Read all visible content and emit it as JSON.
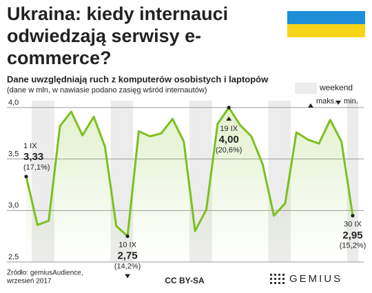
{
  "chart_data": {
    "type": "line",
    "title": "Ukraina: kiedy internauci odwiedzają serwisy e-commerce?",
    "subtitle": "Dane uwzględniają ruch z komputerów osobistych i laptopów",
    "note": "(dane w mln, w nawiasie podano zasięg wśród internautów)",
    "legend": {
      "weekend": "weekend",
      "max": "maks.",
      "min": "min."
    },
    "categories": [
      "1 IX",
      null,
      null,
      null,
      null,
      null,
      null,
      null,
      null,
      "10 IX",
      null,
      null,
      null,
      null,
      null,
      null,
      null,
      null,
      "19 IX",
      null,
      null,
      null,
      null,
      null,
      null,
      null,
      null,
      null,
      null,
      "30 IX"
    ],
    "series": [
      {
        "color": "#7cbf1e",
        "values": [
          3.33,
          2.86,
          2.9,
          3.82,
          3.96,
          3.73,
          3.91,
          3.62,
          2.85,
          2.75,
          3.77,
          3.72,
          3.75,
          3.89,
          3.67,
          2.8,
          3.01,
          3.84,
          4.0,
          3.83,
          3.72,
          3.45,
          2.95,
          3.07,
          3.76,
          3.69,
          3.65,
          3.88,
          3.67,
          2.95
        ],
        "value_labels": [
          "3,33",
          null,
          null,
          null,
          null,
          null,
          null,
          null,
          null,
          "2,75",
          null,
          null,
          null,
          null,
          null,
          null,
          null,
          null,
          "4,00",
          null,
          null,
          null,
          null,
          null,
          null,
          null,
          null,
          null,
          null,
          "2,95"
        ],
        "reach_labels": [
          "(17,1%)",
          null,
          null,
          null,
          null,
          null,
          null,
          null,
          null,
          "(14,2%)",
          null,
          null,
          null,
          null,
          null,
          null,
          null,
          null,
          "(20,6%)",
          null,
          null,
          null,
          null,
          null,
          null,
          null,
          null,
          null,
          null,
          "(15,2%)"
        ]
      }
    ],
    "weekend_indices": [
      1,
      2,
      8,
      9,
      15,
      16,
      22,
      23,
      29
    ],
    "ylim": [
      2.5,
      4.0
    ],
    "yticks": [
      {
        "value": 4.0,
        "label": "4,0"
      },
      {
        "value": 3.5,
        "label": "3,5"
      },
      {
        "value": 3.0,
        "label": "3,0"
      },
      {
        "value": 2.5,
        "label": "2,5"
      }
    ],
    "grid": true,
    "source": "Źródło: gemiusAudience,",
    "source_date": "wrzesień 2017",
    "license": "CC BY-SA",
    "brand": "GEMIUS"
  }
}
